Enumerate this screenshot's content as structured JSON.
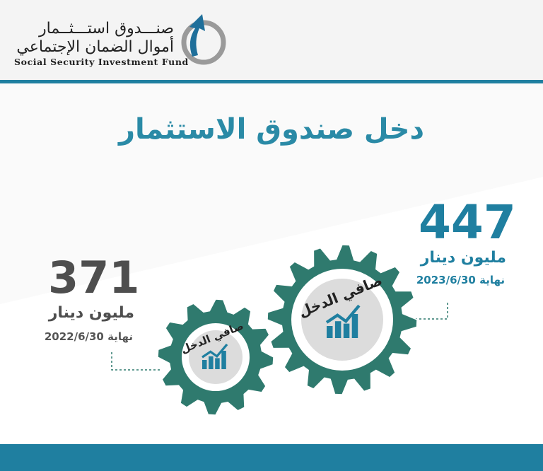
{
  "logo": {
    "arabic_line1": "صنـــدوق استـــثــمار",
    "arabic_line2": "أموال الضمان الإجتماعي",
    "english": "Social Security Investment Fund"
  },
  "title": "دخل صندوق الاستثمار",
  "items": [
    {
      "value": "447",
      "unit": "مليون دينار",
      "date": "نهاية 2023/6/30",
      "gear_label": "صافي الدخل",
      "icon": "growth-chart-icon"
    },
    {
      "value": "371",
      "unit": "مليون دينار",
      "date": "نهاية 2022/6/30",
      "gear_label": "صافي الدخل",
      "icon": "growth-chart-icon"
    }
  ],
  "colors": {
    "primary": "#1f7fa0",
    "gear": "#2f7a6e",
    "dark_text": "#4e4e4e",
    "background": "#f4f4f4"
  }
}
